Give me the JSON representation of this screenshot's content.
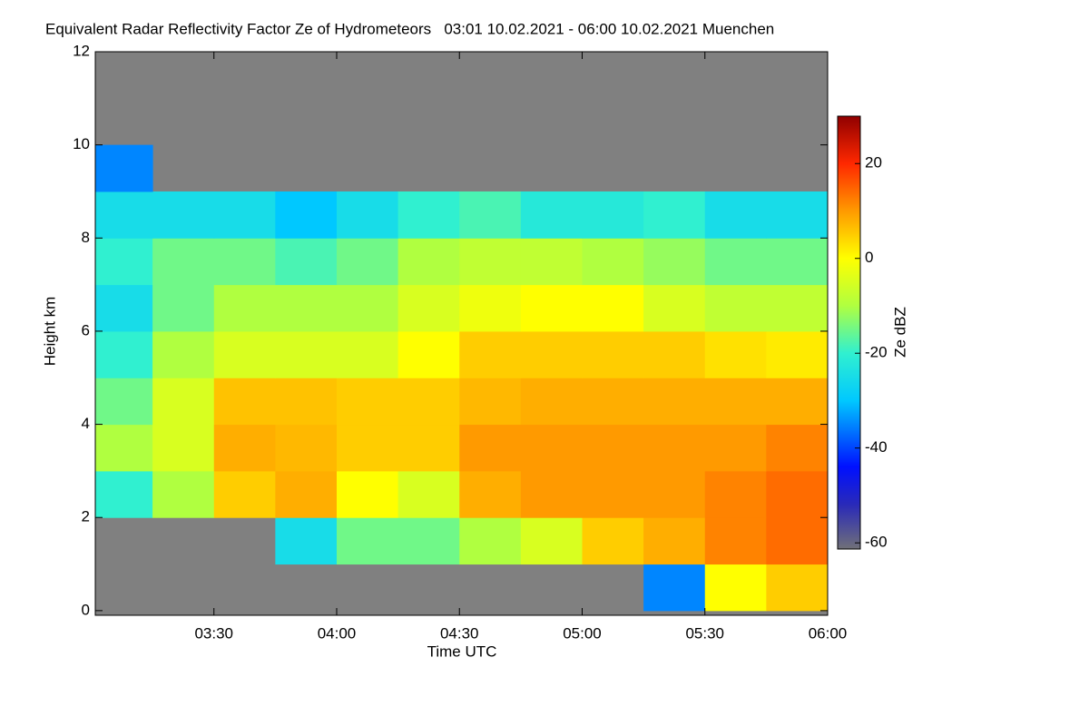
{
  "chart_data": {
    "type": "heatmap",
    "title": "Equivalent Radar Reflectivity Factor Ze of Hydrometeors   03:01 10.02.2021 - 06:00 10.02.2021 Muenchen",
    "xlabel": "Time UTC",
    "ylabel": "Height km",
    "xlim": [
      3.0167,
      6.0
    ],
    "xticks": [
      {
        "value": 3.5,
        "label": "03:30"
      },
      {
        "value": 4.0,
        "label": "04:00"
      },
      {
        "value": 4.5,
        "label": "04:30"
      },
      {
        "value": 5.0,
        "label": "05:00"
      },
      {
        "value": 5.5,
        "label": "05:30"
      },
      {
        "value": 6.0,
        "label": "06:00"
      }
    ],
    "ylim": [
      -0.1,
      12
    ],
    "yticks": [
      0,
      2,
      4,
      6,
      8,
      10,
      12
    ],
    "xbins": [
      3.0167,
      3.25,
      3.5,
      3.75,
      4.0,
      4.25,
      4.5,
      4.75,
      5.0,
      5.25,
      5.5,
      5.75,
      6.0
    ],
    "ybins": [
      0,
      1,
      2,
      3,
      4,
      5,
      6,
      7,
      8,
      9,
      10,
      11,
      12
    ],
    "z": [
      [
        null,
        null,
        null,
        null,
        null,
        null,
        null,
        null,
        null,
        -35,
        0,
        5
      ],
      [
        null,
        null,
        null,
        -25,
        -15,
        -15,
        -10,
        -5,
        5,
        8,
        12,
        14
      ],
      [
        -20,
        -10,
        5,
        8,
        0,
        -5,
        8,
        10,
        10,
        10,
        12,
        14
      ],
      [
        -10,
        -5,
        8,
        7,
        5,
        5,
        10,
        10,
        10,
        10,
        10,
        12
      ],
      [
        -15,
        -5,
        6,
        6,
        5,
        5,
        7,
        8,
        8,
        8,
        8,
        8
      ],
      [
        -20,
        -10,
        -5,
        -5,
        -5,
        0,
        5,
        5,
        5,
        5,
        3,
        2
      ],
      [
        -25,
        -15,
        -10,
        -10,
        -10,
        -5,
        -2,
        0,
        0,
        -5,
        -8,
        -8
      ],
      [
        -20,
        -15,
        -15,
        -18,
        -15,
        -10,
        -8,
        -8,
        -10,
        -12,
        -15,
        -15
      ],
      [
        -25,
        -25,
        -25,
        -30,
        -25,
        -20,
        -18,
        -22,
        -22,
        -20,
        -25,
        -25
      ],
      [
        -35,
        null,
        null,
        null,
        null,
        null,
        null,
        null,
        null,
        null,
        null,
        null
      ],
      [
        null,
        null,
        null,
        null,
        null,
        null,
        null,
        null,
        null,
        null,
        null,
        null
      ],
      [
        null,
        null,
        null,
        null,
        null,
        null,
        null,
        null,
        null,
        null,
        null,
        null
      ]
    ],
    "background": "#808080",
    "colormap": [
      {
        "value": -61.3,
        "color": "#707078"
      },
      {
        "value": -52,
        "color": "#2a2ab8"
      },
      {
        "value": -44,
        "color": "#0010ff"
      },
      {
        "value": -30,
        "color": "#00c8ff"
      },
      {
        "value": -20,
        "color": "#30f0d0"
      },
      {
        "value": -10,
        "color": "#b0ff40"
      },
      {
        "value": 0,
        "color": "#ffff00"
      },
      {
        "value": 10,
        "color": "#ff9a00"
      },
      {
        "value": 20,
        "color": "#ff2800"
      },
      {
        "value": 30,
        "color": "#900000"
      }
    ],
    "colorbar": {
      "label": "Ze dBZ",
      "lim": [
        -61.3,
        30
      ],
      "ticks": [
        -60,
        -40,
        -20,
        0,
        20
      ]
    }
  }
}
